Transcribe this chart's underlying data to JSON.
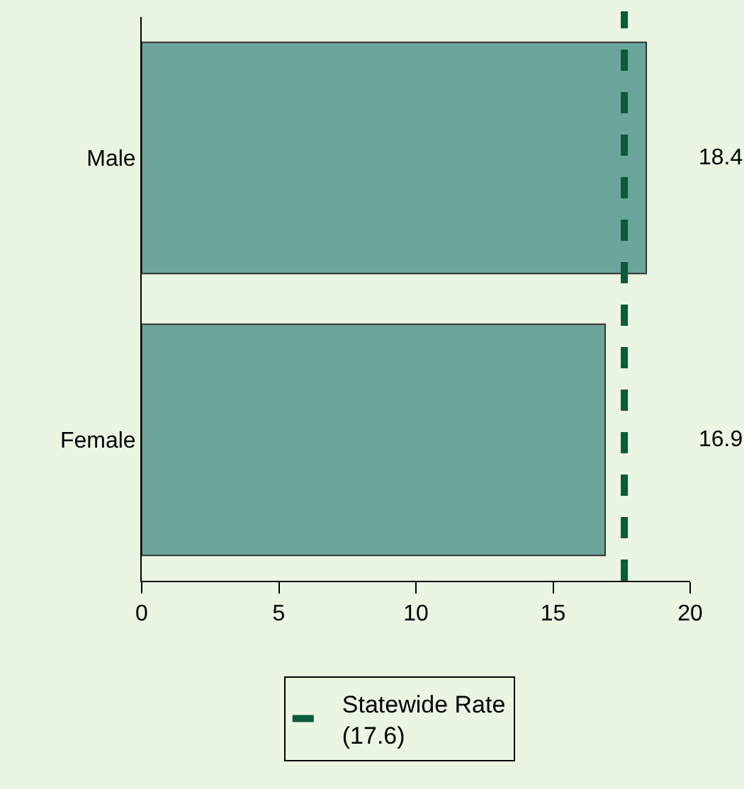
{
  "chart_data": {
    "type": "bar",
    "orientation": "horizontal",
    "categories": [
      "Male",
      "Female"
    ],
    "values": [
      18.4,
      16.9
    ],
    "color": "#6ba59b",
    "xlim": [
      0,
      20
    ],
    "xticks": [
      0,
      5,
      10,
      15,
      20
    ],
    "data_labels": true,
    "grid": false,
    "legend": "bottom",
    "ref_lines": [
      {
        "axis": "x",
        "value": 17.6,
        "label": "Statewide Rate\n(17.6)",
        "color": "#0b5a3a",
        "line_style": "dashed"
      }
    ]
  }
}
